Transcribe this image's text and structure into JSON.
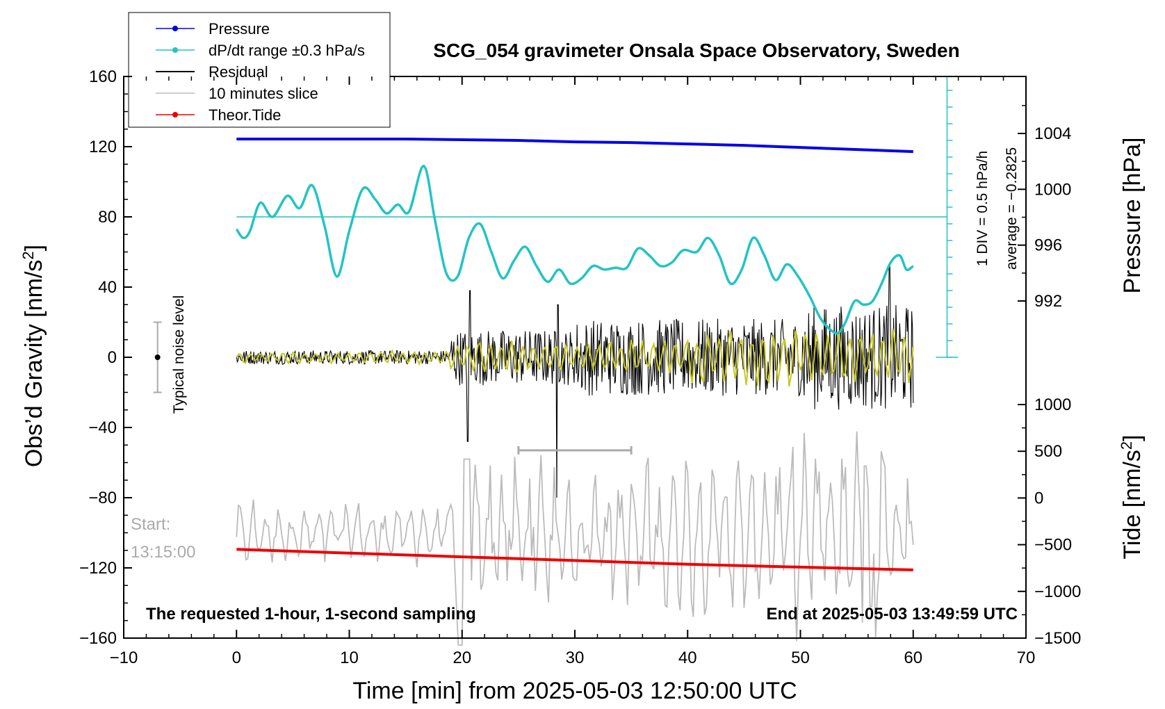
{
  "colors": {
    "pressure": "#0000ee",
    "dpdt": "#22c4c4",
    "residual": "#000000",
    "slice": "#bbbbbb",
    "tide": "#ee0000",
    "filtered": "#c8c820",
    "axis": "#000000"
  },
  "chart_data": {
    "type": "line",
    "title": "SCG_054 gravimeter Onsala Space Observatory, Sweden",
    "xlabel": "Time [min] from 2025-05-03 12:50:00 UTC",
    "ylabel_left": "Obs’d Gravity [nm/s²]",
    "ylabel_left_main": "Obs’d Gravity [nm/s",
    "ylabel_left_sup": "2",
    "ylabel_left_end": "]",
    "ylabel_right_pressure": "Pressure [hPa]",
    "ylabel_right_tide_main": "Tide [nm/s",
    "ylabel_right_tide_sup": "2",
    "ylabel_right_tide_end": "]",
    "xlim": [
      -10,
      70
    ],
    "ylim_gravity": [
      -160,
      160
    ],
    "pressure_axis_range": [
      990,
      1006
    ],
    "tide_axis_range": [
      -1500,
      1000
    ],
    "x_ticks": [
      "−10",
      "0",
      "10",
      "20",
      "30",
      "40",
      "50",
      "60",
      "70"
    ],
    "y_ticks_left": [
      "160",
      "120",
      "80",
      "40",
      "0",
      "−40",
      "−80",
      "−120",
      "−160"
    ],
    "pressure_ticks": [
      "1004",
      "1000",
      "996",
      "992"
    ],
    "tide_ticks": [
      "1000",
      "500",
      "0",
      "−500",
      "−1000",
      "−1500"
    ],
    "legend": [
      {
        "label": "Pressure",
        "color": "#0000ee",
        "marker": true
      },
      {
        "label": "dP/dt range ±0.3 hPa/s",
        "color": "#22c4c4",
        "marker": true
      },
      {
        "label": "Residual",
        "color": "#000000",
        "marker": false
      },
      {
        "label": "10 minutes slice",
        "color": "#bbbbbb",
        "marker": false
      },
      {
        "label": "Theor.Tide",
        "color": "#ee0000",
        "marker": true
      }
    ],
    "series": [
      {
        "name": "Pressure",
        "unit": "hPa",
        "x": [
          0,
          5,
          10,
          15,
          20,
          25,
          30,
          35,
          40,
          45,
          50,
          55,
          60
        ],
        "values": [
          1003.6,
          1003.6,
          1003.6,
          1003.6,
          1003.55,
          1003.5,
          1003.4,
          1003.35,
          1003.25,
          1003.15,
          1003.0,
          1002.85,
          1002.7
        ]
      },
      {
        "name": "dP/dt",
        "unit": "gravity-axis position",
        "x": [
          0,
          0.6,
          1.2,
          2.1,
          3.2,
          4.5,
          5.6,
          6.7,
          7.8,
          8.9,
          10.0,
          11.2,
          12.3,
          13.3,
          14.3,
          15.3,
          16.6,
          17.6,
          18.6,
          19.6,
          20.6,
          21.6,
          22.6,
          23.6,
          24.6,
          25.6,
          26.6,
          27.6,
          28.6,
          29.6,
          30.6,
          31.6,
          32.6,
          33.6,
          34.6,
          35.6,
          36.6,
          37.6,
          38.6,
          39.6,
          40.8,
          41.8,
          42.8,
          43.8,
          44.8,
          45.8,
          46.8,
          47.8,
          48.8,
          49.8,
          50.8,
          51.8,
          52.8,
          53.4,
          54.0,
          54.8,
          55.6,
          56.4,
          57.2,
          58.0,
          58.8,
          59.4,
          60.0
        ],
        "values": [
          73,
          68,
          72,
          88,
          80,
          92,
          85,
          98,
          75,
          46,
          72,
          96,
          90,
          82,
          87,
          83,
          109,
          78,
          48,
          46,
          68,
          76,
          60,
          45,
          55,
          63,
          52,
          43,
          50,
          42,
          45,
          52,
          50,
          51,
          51,
          62,
          58,
          52,
          54,
          61,
          60,
          68,
          58,
          42,
          50,
          68,
          58,
          44,
          53,
          46,
          35,
          22,
          15,
          14,
          20,
          32,
          30,
          32,
          42,
          54,
          58,
          50,
          52
        ]
      },
      {
        "name": "Theor.Tide",
        "unit": "nm/s^2",
        "x": [
          0,
          10,
          20,
          30,
          40,
          50,
          60
        ],
        "values": [
          -550,
          -590,
          -630,
          -670,
          -710,
          -740,
          -770
        ]
      }
    ],
    "residual_description": "black noisy trace around 0, amplitude grows from ~5 to ~40 nm/s² after minute 20; spike to −80 at ~28.5 min",
    "noise_bar": {
      "x": -7,
      "center": 0,
      "half_range": 20
    },
    "slice_marker": {
      "x_from": 25,
      "x_to": 35,
      "y": -53
    },
    "annotations": {
      "dpdt_scale": "1 DIV = 0.5 hPa/h",
      "average": "average = −0.2825",
      "noise_label": "Typical noise level",
      "start_label": "Start:",
      "start_time": "13:15:00",
      "requested": "The requested 1-hour, 1-second sampling",
      "end": "End at 2025-05-03 13:49:59 UTC"
    }
  }
}
